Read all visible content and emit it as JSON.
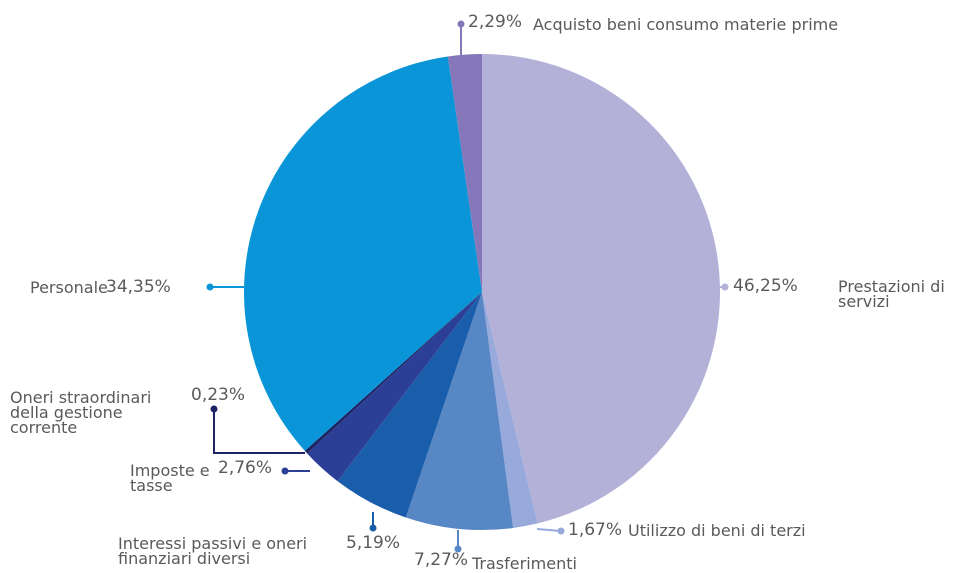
{
  "chart_data": {
    "type": "pie",
    "categories": [
      "Prestazioni di servizi",
      "Utilizzo di beni di terzi",
      "Trasferimenti",
      "Interessi passivi e oneri finanziari diversi",
      "Imposte e tasse",
      "Oneri straordinari della gestione corrente",
      "Personale",
      "Acquisto beni consumo materie prime"
    ],
    "values": [
      46.25,
      1.67,
      7.27,
      5.19,
      2.76,
      0.23,
      34.35,
      2.29
    ],
    "value_labels": [
      "46,25%",
      "1,67%",
      "7,27%",
      "5,19%",
      "2,76%",
      "0,23%",
      "34,35%",
      "2,29%"
    ],
    "colors": [
      "#b3b1d7",
      "#98a9dc",
      "#5787c5",
      "#1a5dab",
      "#2b3f97",
      "#1c2466",
      "#0995d7",
      "#8577ba"
    ]
  }
}
